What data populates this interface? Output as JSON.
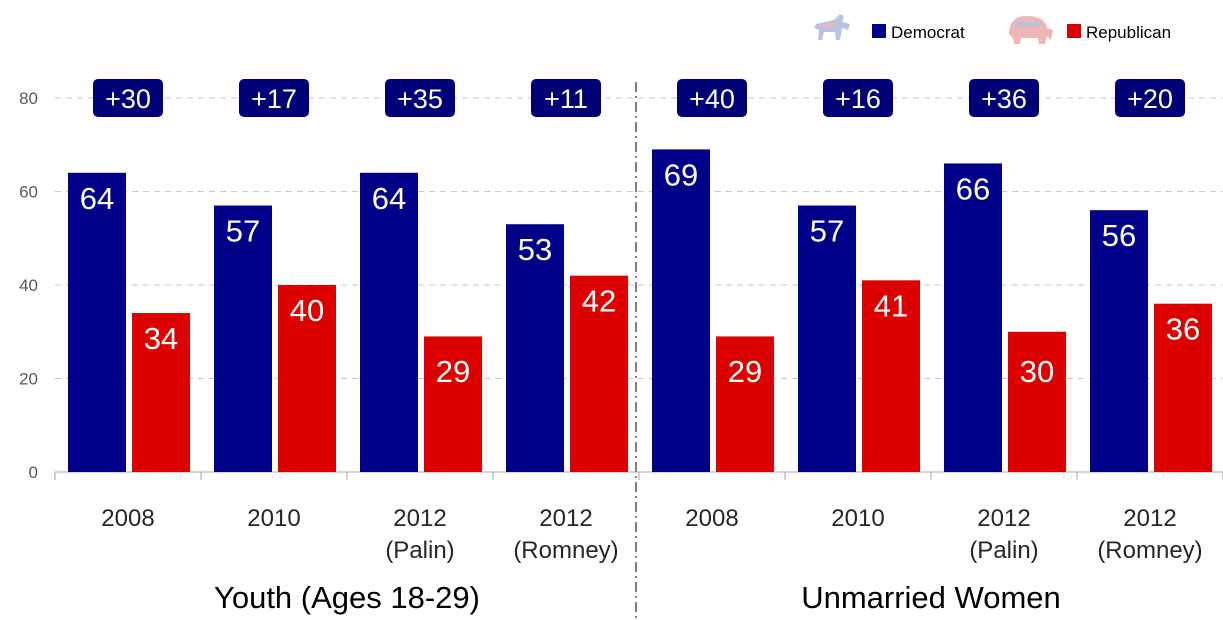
{
  "chart_data": {
    "type": "bar",
    "ylim": [
      0,
      80
    ],
    "yticks": [
      0,
      20,
      40,
      60,
      80
    ],
    "grid": true,
    "legend_position": "top-right",
    "colors": {
      "Democrat": "#000088",
      "Republican": "#dd0000",
      "margin_badge": "#000077"
    },
    "icons": {
      "Democrat": "donkey-icon",
      "Republican": "elephant-icon"
    },
    "series": [
      {
        "name": "Democrat",
        "values": [
          64,
          57,
          64,
          53,
          69,
          57,
          66,
          56
        ]
      },
      {
        "name": "Republican",
        "values": [
          34,
          40,
          29,
          42,
          29,
          41,
          30,
          36
        ]
      }
    ],
    "categories": [
      {
        "line1": "2008",
        "line2": ""
      },
      {
        "line1": "2010",
        "line2": ""
      },
      {
        "line1": "2012",
        "line2": "(Palin)"
      },
      {
        "line1": "2012",
        "line2": "(Romney)"
      },
      {
        "line1": "2008",
        "line2": ""
      },
      {
        "line1": "2010",
        "line2": ""
      },
      {
        "line1": "2012",
        "line2": "(Palin)"
      },
      {
        "line1": "2012",
        "line2": "(Romney)"
      }
    ],
    "margins": [
      "+30",
      "+17",
      "+35",
      "+11",
      "+40",
      "+16",
      "+36",
      "+20"
    ],
    "groups": [
      "Youth (Ages 18-29)",
      "Unmarried Women"
    ]
  }
}
